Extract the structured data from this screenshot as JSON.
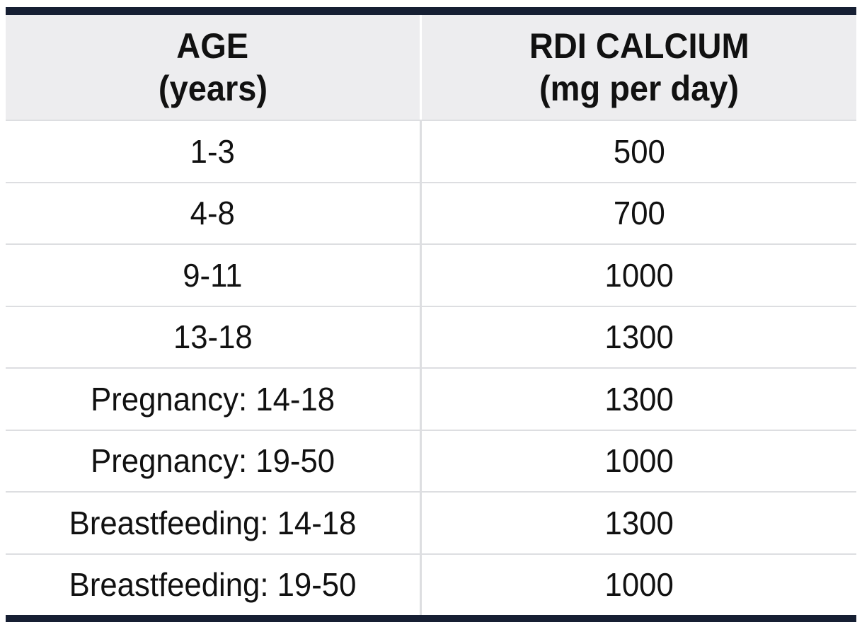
{
  "colors": {
    "accent_bar": "#161f33",
    "header_bg": "#ededef",
    "line": "#dddee1",
    "header_divider": "#ffffff",
    "text": "#111111"
  },
  "table": {
    "columns": [
      {
        "title": "AGE",
        "subtitle": "(years)"
      },
      {
        "title": "RDI CALCIUM",
        "subtitle": "(mg per day)"
      }
    ],
    "rows": [
      {
        "age": "1-3",
        "rdi": "500"
      },
      {
        "age": "4-8",
        "rdi": "700"
      },
      {
        "age": "9-11",
        "rdi": "1000"
      },
      {
        "age": "13-18",
        "rdi": "1300"
      },
      {
        "age": "Pregnancy: 14-18",
        "rdi": "1300"
      },
      {
        "age": "Pregnancy: 19-50",
        "rdi": "1000"
      },
      {
        "age": "Breastfeeding: 14-18",
        "rdi": "1300"
      },
      {
        "age": "Breastfeeding: 19-50",
        "rdi": "1000"
      }
    ]
  },
  "chart_data": {
    "type": "table",
    "title": "",
    "columns": [
      "AGE (years)",
      "RDI CALCIUM (mg per day)"
    ],
    "rows": [
      [
        "1-3",
        500
      ],
      [
        "4-8",
        700
      ],
      [
        "9-11",
        1000
      ],
      [
        "13-18",
        1300
      ],
      [
        "Pregnancy: 14-18",
        1300
      ],
      [
        "Pregnancy: 19-50",
        1000
      ],
      [
        "Breastfeeding: 14-18",
        1300
      ],
      [
        "Breastfeeding: 19-50",
        1000
      ]
    ]
  }
}
